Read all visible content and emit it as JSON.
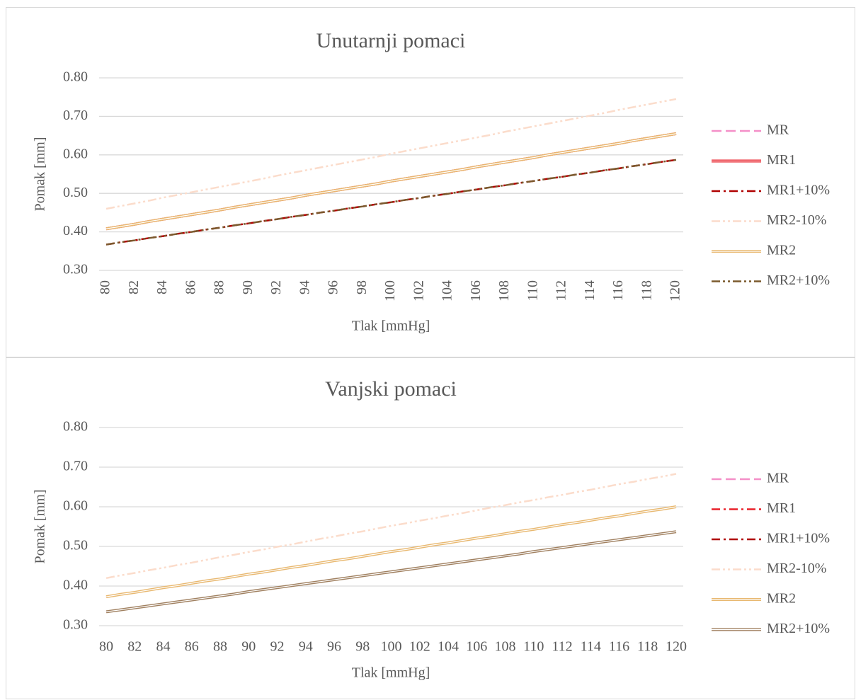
{
  "chart_data": [
    {
      "type": "line",
      "title": "Unutarnji pomaci",
      "x_label": "Tlak [mmHg]",
      "y_label": "Pomak [mm]",
      "xtick_rotation": -90,
      "grid": true,
      "legend": "right",
      "categories": [
        "80",
        null,
        "82",
        null,
        "84",
        null,
        "86",
        null,
        "88",
        null,
        "90",
        null,
        "92",
        null,
        "94",
        null,
        "96",
        null,
        "98",
        null,
        "100",
        null,
        "102",
        null,
        "104",
        null,
        "106",
        null,
        "108",
        null,
        "110",
        null,
        "112",
        null,
        "114",
        null,
        "116",
        null,
        "118",
        null,
        "120"
      ],
      "ylim": [
        0.3,
        0.8
      ],
      "yticks": [
        {
          "value": 0.3,
          "label": "0.30"
        },
        {
          "value": 0.4,
          "label": "0.40"
        },
        {
          "value": 0.5,
          "label": "0.50"
        },
        {
          "value": 0.6,
          "label": "0.60"
        },
        {
          "value": 0.7,
          "label": "0.70"
        },
        {
          "value": 0.8,
          "label": "0.80"
        }
      ],
      "series": [
        {
          "name": "MR",
          "color": "#f48fc8",
          "style": "dashed",
          "values": [
            0.408,
            0.414,
            0.42,
            0.427,
            0.433,
            0.439,
            0.445,
            0.451,
            0.457,
            0.464,
            0.47,
            0.476,
            0.482,
            0.488,
            0.495,
            0.501,
            0.507,
            0.513,
            0.519,
            0.525,
            0.532,
            0.538,
            0.544,
            0.55,
            0.556,
            0.562,
            0.569,
            0.575,
            0.581,
            0.587,
            0.593,
            0.6,
            0.606,
            0.612,
            0.618,
            0.624,
            0.63,
            0.637,
            0.643,
            0.649,
            0.655
          ]
        },
        {
          "name": "MR1",
          "color": "#e8202a",
          "style": "double",
          "values": [
            0.408,
            0.414,
            0.42,
            0.427,
            0.433,
            0.439,
            0.445,
            0.451,
            0.457,
            0.464,
            0.47,
            0.476,
            0.482,
            0.488,
            0.495,
            0.501,
            0.507,
            0.513,
            0.519,
            0.525,
            0.532,
            0.538,
            0.544,
            0.55,
            0.556,
            0.562,
            0.569,
            0.575,
            0.581,
            0.587,
            0.593,
            0.6,
            0.606,
            0.612,
            0.618,
            0.624,
            0.63,
            0.637,
            0.643,
            0.649,
            0.655
          ]
        },
        {
          "name": "MR1+10%",
          "color": "#b00000",
          "style": "dash-dot",
          "values": [
            0.367,
            0.373,
            0.378,
            0.384,
            0.389,
            0.395,
            0.4,
            0.406,
            0.411,
            0.417,
            0.422,
            0.428,
            0.433,
            0.439,
            0.444,
            0.45,
            0.455,
            0.461,
            0.466,
            0.472,
            0.477,
            0.483,
            0.488,
            0.494,
            0.499,
            0.505,
            0.51,
            0.516,
            0.521,
            0.527,
            0.532,
            0.538,
            0.543,
            0.549,
            0.554,
            0.56,
            0.565,
            0.571,
            0.576,
            0.582,
            0.587
          ]
        },
        {
          "name": "MR2-10%",
          "color": "#fbdccb",
          "style": "dash-dot-dot",
          "values": [
            0.46,
            0.467,
            0.474,
            0.481,
            0.489,
            0.496,
            0.503,
            0.51,
            0.517,
            0.524,
            0.531,
            0.538,
            0.546,
            0.553,
            0.56,
            0.567,
            0.574,
            0.581,
            0.588,
            0.595,
            0.603,
            0.61,
            0.617,
            0.624,
            0.631,
            0.638,
            0.645,
            0.652,
            0.66,
            0.667,
            0.674,
            0.681,
            0.688,
            0.695,
            0.702,
            0.709,
            0.717,
            0.724,
            0.731,
            0.738,
            0.745
          ]
        },
        {
          "name": "MR2",
          "color": "#e8b870",
          "style": "double",
          "values": [
            0.408,
            0.414,
            0.42,
            0.427,
            0.433,
            0.439,
            0.445,
            0.451,
            0.457,
            0.464,
            0.47,
            0.476,
            0.482,
            0.488,
            0.495,
            0.501,
            0.507,
            0.513,
            0.519,
            0.525,
            0.532,
            0.538,
            0.544,
            0.55,
            0.556,
            0.562,
            0.569,
            0.575,
            0.581,
            0.587,
            0.593,
            0.6,
            0.606,
            0.612,
            0.618,
            0.624,
            0.63,
            0.637,
            0.643,
            0.649,
            0.655
          ]
        },
        {
          "name": "MR2+10%",
          "color": "#7b5a2e",
          "style": "dash-dot-dot",
          "values": [
            0.367,
            0.373,
            0.378,
            0.384,
            0.389,
            0.395,
            0.4,
            0.406,
            0.411,
            0.417,
            0.422,
            0.428,
            0.433,
            0.439,
            0.444,
            0.45,
            0.455,
            0.461,
            0.466,
            0.472,
            0.477,
            0.483,
            0.488,
            0.494,
            0.499,
            0.505,
            0.51,
            0.516,
            0.521,
            0.527,
            0.532,
            0.538,
            0.543,
            0.549,
            0.554,
            0.56,
            0.565,
            0.571,
            0.576,
            0.582,
            0.587
          ]
        }
      ]
    },
    {
      "type": "line",
      "title": "Vanjski pomaci",
      "x_label": "Tlak [mmHg]",
      "y_label": "Pomak [mm]",
      "xtick_rotation": 0,
      "grid": true,
      "legend": "right",
      "categories": [
        "80",
        null,
        "82",
        null,
        "84",
        null,
        "86",
        null,
        "88",
        null,
        "90",
        null,
        "92",
        null,
        "94",
        null,
        "96",
        null,
        "98",
        null,
        "100",
        null,
        "102",
        null,
        "104",
        null,
        "106",
        null,
        "108",
        null,
        "110",
        null,
        "112",
        null,
        "114",
        null,
        "116",
        null,
        "118",
        null,
        "120"
      ],
      "ylim": [
        0.3,
        0.8
      ],
      "yticks": [
        {
          "value": 0.3,
          "label": "0.30"
        },
        {
          "value": 0.4,
          "label": "0.40"
        },
        {
          "value": 0.5,
          "label": "0.50"
        },
        {
          "value": 0.6,
          "label": "0.60"
        },
        {
          "value": 0.7,
          "label": "0.70"
        },
        {
          "value": 0.8,
          "label": "0.80"
        }
      ],
      "series": [
        {
          "name": "MR",
          "color": "#f48fc8",
          "style": "dashed",
          "values": [
            0.373,
            0.379,
            0.384,
            0.39,
            0.396,
            0.401,
            0.407,
            0.413,
            0.418,
            0.424,
            0.43,
            0.435,
            0.441,
            0.447,
            0.452,
            0.458,
            0.464,
            0.469,
            0.475,
            0.481,
            0.487,
            0.492,
            0.498,
            0.504,
            0.509,
            0.515,
            0.521,
            0.526,
            0.532,
            0.538,
            0.543,
            0.549,
            0.555,
            0.56,
            0.566,
            0.572,
            0.577,
            0.583,
            0.589,
            0.594,
            0.6
          ]
        },
        {
          "name": "MR1",
          "color": "#e8202a",
          "style": "dash-dot",
          "values": [
            0.373,
            0.379,
            0.384,
            0.39,
            0.396,
            0.401,
            0.407,
            0.413,
            0.418,
            0.424,
            0.43,
            0.435,
            0.441,
            0.447,
            0.452,
            0.458,
            0.464,
            0.469,
            0.475,
            0.481,
            0.487,
            0.492,
            0.498,
            0.504,
            0.509,
            0.515,
            0.521,
            0.526,
            0.532,
            0.538,
            0.543,
            0.549,
            0.555,
            0.56,
            0.566,
            0.572,
            0.577,
            0.583,
            0.589,
            0.594,
            0.6
          ]
        },
        {
          "name": "MR1+10%",
          "color": "#b00000",
          "style": "dash-dot",
          "values": [
            0.335,
            0.34,
            0.345,
            0.35,
            0.355,
            0.36,
            0.365,
            0.37,
            0.375,
            0.38,
            0.386,
            0.391,
            0.396,
            0.401,
            0.406,
            0.411,
            0.416,
            0.421,
            0.426,
            0.431,
            0.436,
            0.441,
            0.446,
            0.451,
            0.456,
            0.461,
            0.466,
            0.471,
            0.476,
            0.481,
            0.487,
            0.492,
            0.497,
            0.502,
            0.507,
            0.512,
            0.517,
            0.522,
            0.527,
            0.532,
            0.537
          ]
        },
        {
          "name": "MR2-10%",
          "color": "#fbdccb",
          "style": "dash-dot-dot",
          "values": [
            0.42,
            0.427,
            0.433,
            0.44,
            0.446,
            0.453,
            0.459,
            0.466,
            0.473,
            0.479,
            0.486,
            0.492,
            0.499,
            0.505,
            0.512,
            0.519,
            0.525,
            0.532,
            0.538,
            0.545,
            0.552,
            0.558,
            0.565,
            0.571,
            0.578,
            0.584,
            0.591,
            0.598,
            0.604,
            0.611,
            0.617,
            0.624,
            0.63,
            0.637,
            0.643,
            0.65,
            0.657,
            0.663,
            0.67,
            0.676,
            0.683
          ]
        },
        {
          "name": "MR2",
          "color": "#e8b870",
          "style": "double",
          "values": [
            0.373,
            0.379,
            0.384,
            0.39,
            0.396,
            0.401,
            0.407,
            0.413,
            0.418,
            0.424,
            0.43,
            0.435,
            0.441,
            0.447,
            0.452,
            0.458,
            0.464,
            0.469,
            0.475,
            0.481,
            0.487,
            0.492,
            0.498,
            0.504,
            0.509,
            0.515,
            0.521,
            0.526,
            0.532,
            0.538,
            0.543,
            0.549,
            0.555,
            0.56,
            0.566,
            0.572,
            0.577,
            0.583,
            0.589,
            0.594,
            0.6
          ]
        },
        {
          "name": "MR2+10%",
          "color": "#a08060",
          "style": "double",
          "values": [
            0.335,
            0.34,
            0.345,
            0.35,
            0.355,
            0.36,
            0.365,
            0.37,
            0.375,
            0.38,
            0.386,
            0.391,
            0.396,
            0.401,
            0.406,
            0.411,
            0.416,
            0.421,
            0.426,
            0.431,
            0.436,
            0.441,
            0.446,
            0.451,
            0.456,
            0.461,
            0.466,
            0.471,
            0.476,
            0.481,
            0.487,
            0.492,
            0.497,
            0.502,
            0.507,
            0.512,
            0.517,
            0.522,
            0.527,
            0.532,
            0.537
          ]
        }
      ]
    }
  ]
}
